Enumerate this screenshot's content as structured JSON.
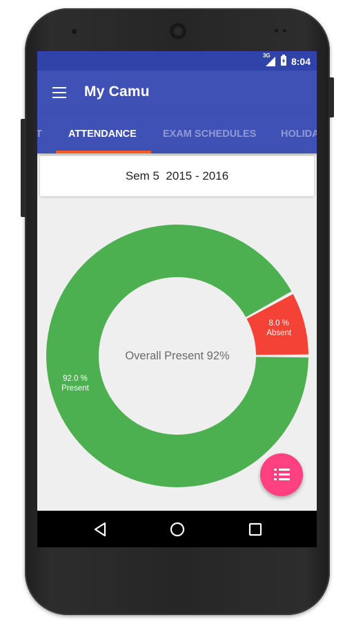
{
  "status_bar": {
    "network_label": "3G",
    "time": "8:04",
    "icons": [
      "signal-icon",
      "battery-icon"
    ]
  },
  "app_bar": {
    "title": "My Camu",
    "menu_icon": "hamburger-menu-icon"
  },
  "tabs": [
    {
      "label": "T",
      "active": false
    },
    {
      "label": "ATTENDANCE",
      "active": true
    },
    {
      "label": "EXAM SCHEDULES",
      "active": false
    },
    {
      "label": "HOLIDA",
      "active": false
    }
  ],
  "semester": {
    "label": "Sem 5  2015 - 2016"
  },
  "chart_data": {
    "type": "pie",
    "donut": true,
    "center_text": "Overall Present 92%",
    "slices": [
      {
        "label": "Present",
        "value": 92.0,
        "value_label": "92.0 %",
        "color": "#4caf50"
      },
      {
        "label": "Absent",
        "value": 8.0,
        "value_label": "8.0 %",
        "color": "#f44336"
      }
    ]
  },
  "fab": {
    "icon": "list-icon",
    "color": "#ff4081"
  },
  "nav_bar": {
    "buttons": [
      "back-icon",
      "home-icon",
      "recents-icon"
    ]
  },
  "colors": {
    "primary": "#3f51b5",
    "primary_dark": "#2f43a8",
    "tab_indicator": "#ff5722"
  }
}
